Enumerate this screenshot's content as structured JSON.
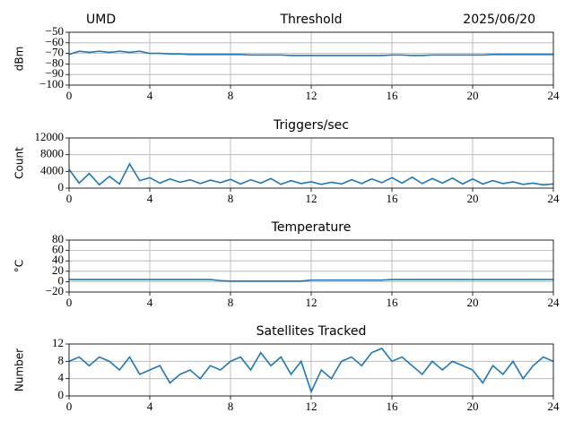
{
  "chart_data": [
    {
      "type": "line",
      "title": "Threshold",
      "annotations": [
        "UMD",
        "2025/06/20"
      ],
      "ylabel": "dBm",
      "color": "#1f77b4",
      "grid": true,
      "x": [
        0,
        0.5,
        1,
        1.5,
        2,
        2.5,
        3,
        3.5,
        4,
        4.5,
        5,
        5.5,
        6,
        6.5,
        7,
        7.5,
        8,
        8.5,
        9,
        9.5,
        10,
        10.5,
        11,
        11.5,
        12,
        12.5,
        13,
        13.5,
        14,
        14.5,
        15,
        15.5,
        16,
        16.5,
        17,
        17.5,
        18,
        18.5,
        19,
        19.5,
        20,
        20.5,
        21,
        21.5,
        22,
        22.5,
        23,
        23.5,
        24
      ],
      "values": [
        -71,
        -68,
        -69,
        -68,
        -69,
        -68,
        -69,
        -68,
        -70,
        -70,
        -70.5,
        -70.5,
        -71,
        -71,
        -71,
        -71,
        -71,
        -71,
        -71.5,
        -71.5,
        -71.5,
        -71.5,
        -72,
        -72,
        -72,
        -72,
        -72,
        -72,
        -72,
        -72,
        -72,
        -72,
        -71.5,
        -71.5,
        -72,
        -72,
        -71.5,
        -71.5,
        -71.5,
        -71.5,
        -71.5,
        -71.5,
        -71,
        -71,
        -71,
        -71,
        -71,
        -71,
        -71
      ],
      "xlim": [
        0,
        24
      ],
      "xticks": [
        0,
        4,
        8,
        12,
        16,
        20,
        24
      ],
      "ylim": [
        -100,
        -50
      ],
      "yticks": [
        {
          "value": -100,
          "label": "−100"
        },
        {
          "value": -90,
          "label": "−90"
        },
        {
          "value": -80,
          "label": "−80"
        },
        {
          "value": -70,
          "label": "−70"
        },
        {
          "value": -60,
          "label": "−60"
        },
        {
          "value": -50,
          "label": "−50"
        }
      ]
    },
    {
      "type": "line",
      "title": "Triggers/sec",
      "ylabel": "Count",
      "color": "#1f77b4",
      "grid": true,
      "x": [
        0,
        0.5,
        1,
        1.5,
        2,
        2.5,
        3,
        3.5,
        4,
        4.5,
        5,
        5.5,
        6,
        6.5,
        7,
        7.5,
        8,
        8.5,
        9,
        9.5,
        10,
        10.5,
        11,
        11.5,
        12,
        12.5,
        13,
        13.5,
        14,
        14.5,
        15,
        15.5,
        16,
        16.5,
        17,
        17.5,
        18,
        18.5,
        19,
        19.5,
        20,
        20.5,
        21,
        21.5,
        22,
        22.5,
        23,
        23.5,
        24
      ],
      "values": [
        4500,
        1200,
        3500,
        800,
        2800,
        1000,
        5800,
        1800,
        2500,
        1200,
        2200,
        1400,
        2000,
        1100,
        1900,
        1300,
        2100,
        1000,
        2000,
        1200,
        2300,
        900,
        1800,
        1100,
        1500,
        900,
        1400,
        1000,
        2000,
        1100,
        2200,
        1300,
        2500,
        1200,
        2600,
        1100,
        2300,
        1200,
        2400,
        1000,
        2200,
        1000,
        1800,
        1100,
        1500,
        900,
        1200,
        800,
        1000
      ],
      "xlim": [
        0,
        24
      ],
      "xticks": [
        0,
        4,
        8,
        12,
        16,
        20,
        24
      ],
      "ylim": [
        0,
        12000
      ],
      "yticks": [
        0,
        4000,
        8000,
        12000
      ]
    },
    {
      "type": "line",
      "title": "Temperature",
      "ylabel": "°C",
      "color": "#1f77b4",
      "grid": true,
      "x": [
        0,
        0.5,
        1,
        1.5,
        2,
        2.5,
        3,
        3.5,
        4,
        4.5,
        5,
        5.5,
        6,
        6.5,
        7,
        7.5,
        8,
        8.5,
        9,
        9.5,
        10,
        10.5,
        11,
        11.5,
        12,
        12.5,
        13,
        13.5,
        14,
        14.5,
        15,
        15.5,
        16,
        16.5,
        17,
        17.5,
        18,
        18.5,
        19,
        19.5,
        20,
        20.5,
        21,
        21.5,
        22,
        22.5,
        23,
        23.5,
        24
      ],
      "values": [
        4,
        4,
        4,
        4,
        4,
        4,
        4,
        4,
        4,
        4,
        4,
        4,
        4,
        4,
        4,
        2,
        1,
        1,
        1,
        1,
        1,
        1,
        1,
        1,
        3,
        3,
        3,
        3,
        3,
        3,
        3,
        3,
        4,
        4,
        4,
        4,
        4,
        4,
        4,
        4,
        4,
        4,
        4,
        4,
        4,
        4,
        4,
        4,
        4
      ],
      "xlim": [
        0,
        24
      ],
      "xticks": [
        0,
        4,
        8,
        12,
        16,
        20,
        24
      ],
      "ylim": [
        -20,
        80
      ],
      "yticks": [
        {
          "value": -20,
          "label": "−20"
        },
        0,
        20,
        40,
        60,
        80
      ]
    },
    {
      "type": "line",
      "title": "Satellites Tracked",
      "ylabel": "Number",
      "color": "#1f77b4",
      "grid": true,
      "x": [
        0,
        0.5,
        1,
        1.5,
        2,
        2.5,
        3,
        3.5,
        4,
        4.5,
        5,
        5.5,
        6,
        6.5,
        7,
        7.5,
        8,
        8.5,
        9,
        9.5,
        10,
        10.5,
        11,
        11.5,
        12,
        12.5,
        13,
        13.5,
        14,
        14.5,
        15,
        15.5,
        16,
        16.5,
        17,
        17.5,
        18,
        18.5,
        19,
        19.5,
        20,
        20.5,
        21,
        21.5,
        22,
        22.5,
        23,
        23.5,
        24
      ],
      "values": [
        8,
        9,
        7,
        9,
        8,
        6,
        9,
        5,
        6,
        7,
        3,
        5,
        6,
        4,
        7,
        6,
        8,
        9,
        6,
        10,
        7,
        9,
        5,
        8,
        1,
        6,
        4,
        8,
        9,
        7,
        10,
        11,
        8,
        9,
        7,
        5,
        8,
        6,
        8,
        7,
        6,
        3,
        7,
        5,
        8,
        4,
        7,
        9,
        8
      ],
      "xlim": [
        0,
        24
      ],
      "xticks": [
        0,
        4,
        8,
        12,
        16,
        20,
        24
      ],
      "ylim": [
        0,
        12
      ],
      "yticks": [
        0,
        4,
        8,
        12
      ]
    }
  ]
}
